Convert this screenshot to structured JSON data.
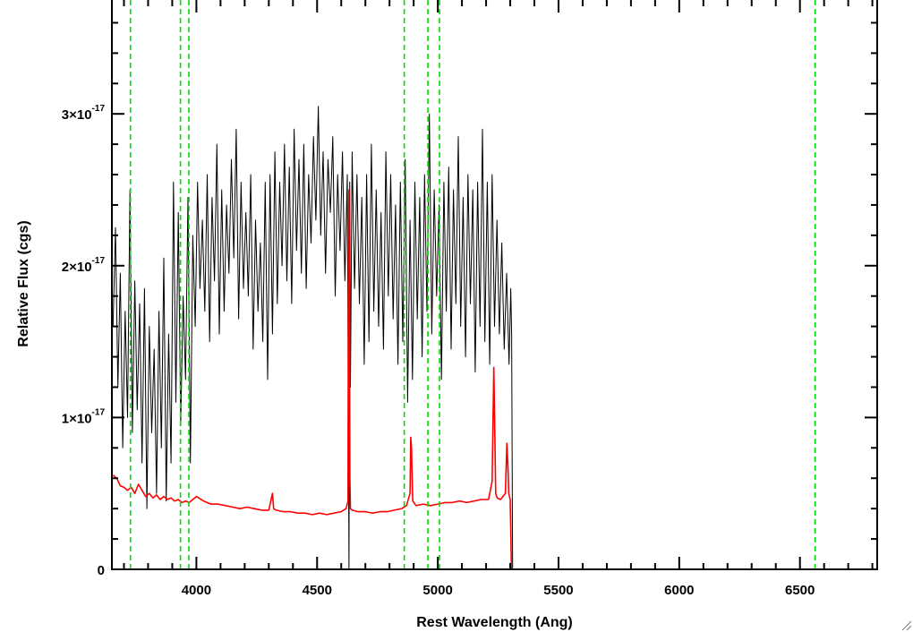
{
  "chart_data": {
    "type": "line",
    "title": "",
    "xlabel": "Rest Wavelength (Ang)",
    "ylabel": "Relative Flux (cgs)",
    "xlim": [
      3650,
      6820
    ],
    "ylim": [
      0,
      3.75e-17
    ],
    "x_ticks": [
      {
        "value": 4000,
        "label": "4000"
      },
      {
        "value": 4500,
        "label": "4500"
      },
      {
        "value": 5000,
        "label": "5000"
      },
      {
        "value": 5500,
        "label": "5500"
      },
      {
        "value": 6000,
        "label": "6000"
      },
      {
        "value": 6500,
        "label": "6500"
      }
    ],
    "y_ticks": [
      {
        "value": 0,
        "mantissa": "0",
        "exponent": ""
      },
      {
        "value": 1e-17,
        "mantissa": "1×10",
        "exponent": "-17"
      },
      {
        "value": 2e-17,
        "mantissa": "2×10",
        "exponent": "-17"
      },
      {
        "value": 3e-17,
        "mantissa": "3×10",
        "exponent": "-17"
      }
    ],
    "grid": false,
    "reference_lines": {
      "color": "#00dd00",
      "style": "dashed",
      "x": [
        3727,
        3934,
        3969,
        4861,
        4959,
        5007,
        6563
      ]
    },
    "series": [
      {
        "role": "observed spectrum",
        "color": "#000000",
        "x": [
          3655,
          3665,
          3675,
          3685,
          3695,
          3705,
          3715,
          3725,
          3735,
          3745,
          3755,
          3765,
          3775,
          3785,
          3795,
          3805,
          3815,
          3825,
          3835,
          3845,
          3855,
          3865,
          3875,
          3885,
          3895,
          3905,
          3915,
          3925,
          3935,
          3945,
          3955,
          3965,
          3975,
          3985,
          3995,
          4005,
          4015,
          4025,
          4035,
          4045,
          4055,
          4065,
          4075,
          4085,
          4095,
          4105,
          4115,
          4125,
          4135,
          4145,
          4155,
          4165,
          4175,
          4185,
          4195,
          4205,
          4215,
          4225,
          4235,
          4245,
          4255,
          4265,
          4275,
          4285,
          4295,
          4305,
          4315,
          4325,
          4335,
          4345,
          4355,
          4365,
          4375,
          4385,
          4395,
          4405,
          4415,
          4425,
          4435,
          4445,
          4455,
          4465,
          4475,
          4485,
          4495,
          4505,
          4515,
          4525,
          4535,
          4545,
          4555,
          4565,
          4575,
          4585,
          4595,
          4605,
          4615,
          4625,
          4632,
          4635,
          4638,
          4645,
          4655,
          4665,
          4675,
          4685,
          4695,
          4705,
          4715,
          4725,
          4735,
          4745,
          4755,
          4765,
          4775,
          4785,
          4795,
          4805,
          4815,
          4825,
          4835,
          4845,
          4855,
          4865,
          4875,
          4885,
          4895,
          4905,
          4915,
          4925,
          4935,
          4945,
          4955,
          4965,
          4975,
          4985,
          4995,
          5005,
          5015,
          5025,
          5035,
          5045,
          5055,
          5065,
          5075,
          5085,
          5095,
          5105,
          5115,
          5125,
          5135,
          5145,
          5155,
          5165,
          5175,
          5185,
          5195,
          5205,
          5215,
          5225,
          5235,
          5245,
          5255,
          5265,
          5275,
          5285,
          5295,
          5302,
          5306,
          5310
        ],
        "y": [
          1.6e-17,
          2.25e-17,
          1.2e-17,
          1.95e-17,
          8e-18,
          1.7e-17,
          1e-17,
          2.5e-17,
          9e-18,
          1.9e-17,
          1.05e-17,
          1.75e-17,
          7e-18,
          1.85e-17,
          4e-18,
          1.6e-17,
          9e-18,
          1.45e-17,
          5e-18,
          1.7e-17,
          8e-18,
          2.05e-17,
          4.5e-18,
          1.55e-17,
          7e-18,
          2.55e-17,
          1.1e-17,
          2.35e-17,
          9.5e-18,
          1.8e-17,
          1.25e-17,
          2.45e-17,
          7e-18,
          2.2e-17,
          1.6e-17,
          2.55e-17,
          1.85e-17,
          2.3e-17,
          1.7e-17,
          2.6e-17,
          1.5e-17,
          2.45e-17,
          1.9e-17,
          2.8e-17,
          1.55e-17,
          2.5e-17,
          1.7e-17,
          2.4e-17,
          1.95e-17,
          2.7e-17,
          2.05e-17,
          2.9e-17,
          1.65e-17,
          2.55e-17,
          1.85e-17,
          2.35e-17,
          1.8e-17,
          2.6e-17,
          1.45e-17,
          2.3e-17,
          1.7e-17,
          2.15e-17,
          1.5e-17,
          2.55e-17,
          1.25e-17,
          2.6e-17,
          1.55e-17,
          2.75e-17,
          1.75e-17,
          2.55e-17,
          2e-17,
          2.8e-17,
          1.9e-17,
          2.65e-17,
          1.75e-17,
          2.9e-17,
          2.1e-17,
          2.7e-17,
          1.95e-17,
          2.8e-17,
          1.85e-17,
          2.6e-17,
          2.15e-17,
          2.85e-17,
          2.3e-17,
          3.05e-17,
          2.2e-17,
          2.75e-17,
          1.95e-17,
          2.7e-17,
          2.35e-17,
          2.85e-17,
          1.8e-17,
          2.6e-17,
          2.1e-17,
          2.75e-17,
          1.9e-17,
          2.6e-17,
          0.0,
          2.55e-17,
          1.2e-17,
          2.75e-17,
          1.85e-17,
          2.6e-17,
          1.75e-17,
          2.45e-17,
          1.35e-17,
          2.6e-17,
          1.5e-17,
          2.8e-17,
          1.7e-17,
          2.5e-17,
          1.6e-17,
          2.35e-17,
          1.45e-17,
          2.75e-17,
          1.8e-17,
          2.6e-17,
          1.65e-17,
          2.4e-17,
          1.35e-17,
          2.55e-17,
          1.5e-17,
          2.7e-17,
          1.1e-17,
          2.3e-17,
          1.25e-17,
          2.55e-17,
          1.65e-17,
          2.45e-17,
          1.4e-17,
          2.6e-17,
          1.7e-17,
          3e-17,
          1.55e-17,
          2.5e-17,
          1.8e-17,
          2.4e-17,
          1.25e-17,
          2.55e-17,
          1.7e-17,
          2.65e-17,
          1.45e-17,
          2.5e-17,
          1.75e-17,
          2.85e-17,
          1.6e-17,
          2.45e-17,
          1.4e-17,
          2.6e-17,
          1.75e-17,
          2.5e-17,
          1.3e-17,
          2.55e-17,
          1.6e-17,
          2.9e-17,
          1.5e-17,
          2.55e-17,
          1.35e-17,
          2.6e-17,
          1.6e-17,
          2.3e-17,
          1.55e-17,
          2.15e-17,
          1.45e-17,
          1.95e-17,
          1.35e-17,
          1.85e-17,
          1.55e-17,
          0.0
        ]
      },
      {
        "role": "model / error spectrum",
        "color": "#ff0000",
        "x": [
          3655,
          3670,
          3685,
          3700,
          3715,
          3730,
          3745,
          3760,
          3775,
          3790,
          3805,
          3820,
          3835,
          3850,
          3865,
          3880,
          3895,
          3910,
          3925,
          3940,
          3955,
          3970,
          3985,
          4000,
          4030,
          4060,
          4090,
          4120,
          4150,
          4180,
          4210,
          4240,
          4270,
          4300,
          4315,
          4320,
          4330,
          4360,
          4390,
          4420,
          4450,
          4480,
          4510,
          4540,
          4570,
          4600,
          4620,
          4628,
          4630,
          4632,
          4634,
          4636,
          4638,
          4645,
          4670,
          4700,
          4730,
          4760,
          4790,
          4820,
          4850,
          4870,
          4885,
          4888,
          4891,
          4896,
          4910,
          4940,
          4970,
          5000,
          5030,
          5060,
          5090,
          5120,
          5150,
          5180,
          5210,
          5225,
          5232,
          5236,
          5240,
          5246,
          5260,
          5280,
          5286,
          5290,
          5294,
          5300,
          5305,
          5310,
          5320,
          6820
        ],
        "y": [
          6.2e-18,
          6e-18,
          5.5e-18,
          5.4e-18,
          5.2e-18,
          5.4e-18,
          5e-18,
          5.6e-18,
          5.2e-18,
          4.8e-18,
          5e-18,
          4.7e-18,
          4.9e-18,
          4.6e-18,
          4.8e-18,
          4.6e-18,
          4.7e-18,
          4.5e-18,
          4.6e-18,
          4.4e-18,
          4.5e-18,
          4.4e-18,
          4.6e-18,
          4.8e-18,
          4.5e-18,
          4.3e-18,
          4.3e-18,
          4.2e-18,
          4.1e-18,
          4e-18,
          4.1e-18,
          4e-18,
          3.9e-18,
          3.9e-18,
          5e-18,
          4e-18,
          3.9e-18,
          3.8e-18,
          3.8e-18,
          3.7e-18,
          3.7e-18,
          3.6e-18,
          3.7e-18,
          3.6e-18,
          3.7e-18,
          3.8e-18,
          4e-18,
          4.5e-18,
          2.05e-17,
          2.5e-17,
          1.6e-17,
          6e-18,
          4e-18,
          3.9e-18,
          3.8e-18,
          3.8e-18,
          3.7e-18,
          3.8e-18,
          3.8e-18,
          3.9e-18,
          4e-18,
          4.2e-18,
          5e-18,
          8.7e-18,
          8e-18,
          4.5e-18,
          4.2e-18,
          4.3e-18,
          4.2e-18,
          4.3e-18,
          4.4e-18,
          4.4e-18,
          4.5e-18,
          4.4e-18,
          4.5e-18,
          4.6e-18,
          4.6e-18,
          5.8e-18,
          1.33e-17,
          9e-18,
          5e-18,
          4.7e-18,
          4.6e-18,
          5e-18,
          8.3e-18,
          7e-18,
          5e-18,
          4.6e-18,
          0.0,
          0.0,
          0.0,
          0.0
        ]
      }
    ]
  }
}
